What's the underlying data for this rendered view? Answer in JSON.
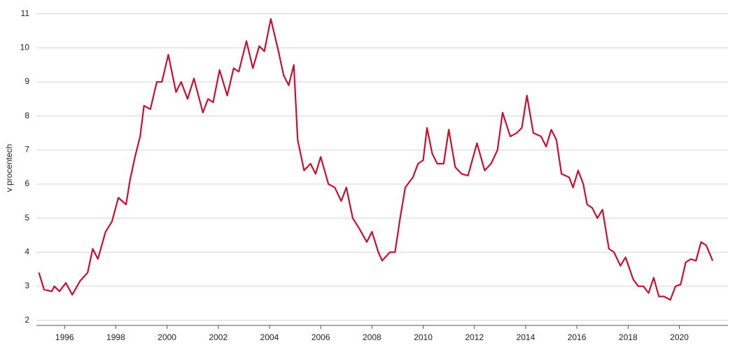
{
  "chart_data": {
    "type": "line",
    "y_label": "v procentech",
    "x": [
      1995.0,
      1995.2,
      1995.5,
      1995.6,
      1995.8,
      1996.05,
      1996.3,
      1996.6,
      1996.9,
      1997.1,
      1997.3,
      1997.6,
      1997.85,
      1998.1,
      1998.4,
      1998.55,
      1998.75,
      1998.95,
      1999.1,
      1999.35,
      1999.6,
      1999.8,
      2000.05,
      2000.35,
      2000.55,
      2000.8,
      2001.05,
      2001.4,
      2001.6,
      2001.8,
      2002.05,
      2002.35,
      2002.6,
      2002.8,
      2003.1,
      2003.35,
      2003.6,
      2003.8,
      2004.05,
      2004.35,
      2004.55,
      2004.75,
      2004.95,
      2005.1,
      2005.35,
      2005.6,
      2005.8,
      2006.0,
      2006.3,
      2006.55,
      2006.8,
      2007.0,
      2007.25,
      2007.5,
      2007.8,
      2008.0,
      2008.25,
      2008.4,
      2008.7,
      2008.9,
      2009.1,
      2009.3,
      2009.6,
      2009.8,
      2010.0,
      2010.15,
      2010.35,
      2010.55,
      2010.8,
      2011.0,
      2011.25,
      2011.5,
      2011.75,
      2012.1,
      2012.4,
      2012.65,
      2012.9,
      2013.1,
      2013.4,
      2013.65,
      2013.85,
      2014.05,
      2014.3,
      2014.6,
      2014.8,
      2015.0,
      2015.2,
      2015.4,
      2015.7,
      2015.85,
      2016.05,
      2016.25,
      2016.4,
      2016.6,
      2016.8,
      2017.0,
      2017.25,
      2017.45,
      2017.7,
      2017.9,
      2018.2,
      2018.4,
      2018.6,
      2018.8,
      2019.0,
      2019.2,
      2019.4,
      2019.65,
      2019.85,
      2020.05,
      2020.25,
      2020.45,
      2020.65,
      2020.85,
      2021.05,
      2021.3
    ],
    "series": [
      {
        "color": "#c8102e",
        "values": [
          3.4,
          2.9,
          2.85,
          3.0,
          2.85,
          3.1,
          2.75,
          3.15,
          3.4,
          4.1,
          3.8,
          4.6,
          4.9,
          5.6,
          5.4,
          6.1,
          6.8,
          7.4,
          8.3,
          8.2,
          9.0,
          9.0,
          9.8,
          8.7,
          9.0,
          8.5,
          9.1,
          8.1,
          8.5,
          8.4,
          9.35,
          8.6,
          9.4,
          9.3,
          10.2,
          9.4,
          10.05,
          9.9,
          10.85,
          9.9,
          9.2,
          8.9,
          9.5,
          7.3,
          6.4,
          6.6,
          6.3,
          6.8,
          6.0,
          5.9,
          5.5,
          5.9,
          5.0,
          4.7,
          4.3,
          4.6,
          4.0,
          3.75,
          4.0,
          4.0,
          5.0,
          5.9,
          6.2,
          6.6,
          6.7,
          7.65,
          6.9,
          6.6,
          6.6,
          7.6,
          6.5,
          6.3,
          6.25,
          7.2,
          6.4,
          6.6,
          7.0,
          8.1,
          7.4,
          7.5,
          7.65,
          8.6,
          7.5,
          7.4,
          7.1,
          7.6,
          7.3,
          6.3,
          6.2,
          5.9,
          6.4,
          6.0,
          5.4,
          5.3,
          5.0,
          5.25,
          4.1,
          4.0,
          3.6,
          3.85,
          3.2,
          3.0,
          3.0,
          2.8,
          3.25,
          2.7,
          2.7,
          2.6,
          3.0,
          3.05,
          3.7,
          3.8,
          3.75,
          4.3,
          4.2,
          3.75
        ]
      }
    ],
    "xlim": [
      1994.9,
      2021.9
    ],
    "xticks": [
      1996,
      1998,
      2000,
      2002,
      2004,
      2006,
      2008,
      2010,
      2012,
      2014,
      2016,
      2018,
      2020
    ],
    "ylim": [
      1.85,
      11.2
    ],
    "yticks": [
      2,
      3,
      4,
      5,
      6,
      7,
      8,
      9,
      10,
      11
    ],
    "grid": true
  }
}
